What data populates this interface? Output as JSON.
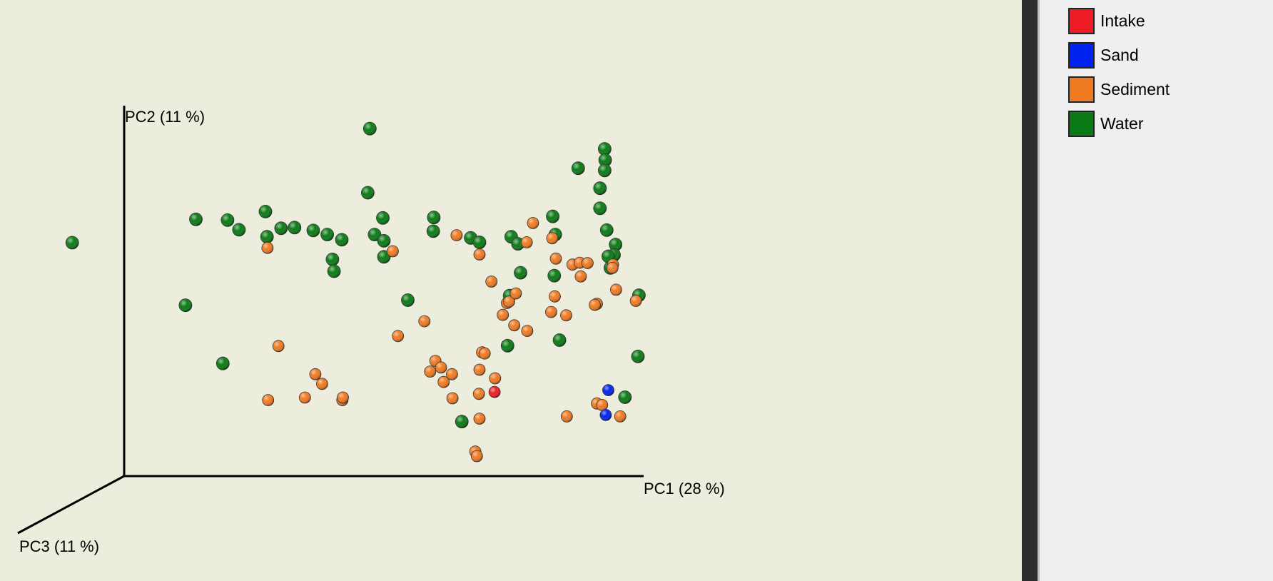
{
  "chart_data": {
    "type": "scatter",
    "title": "",
    "axes": {
      "x": {
        "label": "PC1 (28 %)"
      },
      "y": {
        "label": "PC2 (11 %)"
      },
      "z": {
        "label": "PC3 (11 %)"
      }
    },
    "legend_position": "top-right panel",
    "series": [
      {
        "name": "Intake",
        "color": "#ee1c24",
        "points": [
          [
            0.713,
            0.227
          ]
        ]
      },
      {
        "name": "Sand",
        "color": "#0022ee",
        "points": [
          [
            0.932,
            0.232
          ],
          [
            0.927,
            0.165
          ]
        ]
      },
      {
        "name": "Sediment",
        "color": "#f07a22",
        "points": [
          [
            0.276,
            0.616
          ],
          [
            0.297,
            0.351
          ],
          [
            0.277,
            0.205
          ],
          [
            0.348,
            0.212
          ],
          [
            0.368,
            0.275
          ],
          [
            0.381,
            0.249
          ],
          [
            0.42,
            0.205
          ],
          [
            0.421,
            0.212
          ],
          [
            0.517,
            0.607
          ],
          [
            0.527,
            0.378
          ],
          [
            0.578,
            0.418
          ],
          [
            0.589,
            0.282
          ],
          [
            0.599,
            0.311
          ],
          [
            0.61,
            0.293
          ],
          [
            0.615,
            0.254
          ],
          [
            0.631,
            0.275
          ],
          [
            0.632,
            0.21
          ],
          [
            0.64,
            0.65
          ],
          [
            0.684,
            0.598
          ],
          [
            0.684,
            0.287
          ],
          [
            0.689,
            0.334
          ],
          [
            0.694,
            0.331
          ],
          [
            0.683,
            0.222
          ],
          [
            0.684,
            0.155
          ],
          [
            0.676,
            0.066
          ],
          [
            0.679,
            0.054
          ],
          [
            0.707,
            0.525
          ],
          [
            0.737,
            0.467
          ],
          [
            0.741,
            0.471
          ],
          [
            0.729,
            0.435
          ],
          [
            0.751,
            0.407
          ],
          [
            0.787,
            0.683
          ],
          [
            0.775,
            0.631
          ],
          [
            0.822,
            0.443
          ],
          [
            0.829,
            0.485
          ],
          [
            0.831,
            0.587
          ],
          [
            0.863,
            0.571
          ],
          [
            0.877,
            0.576
          ],
          [
            0.879,
            0.539
          ],
          [
            0.892,
            0.575
          ],
          [
            0.941,
            0.571
          ],
          [
            0.91,
            0.465
          ],
          [
            0.947,
            0.503
          ],
          [
            0.906,
            0.462
          ],
          [
            0.91,
            0.196
          ],
          [
            0.955,
            0.161
          ],
          [
            0.985,
            0.473
          ],
          [
            0.852,
            0.161
          ],
          [
            0.92,
            0.192
          ],
          [
            0.851,
            0.434
          ],
          [
            0.94,
            0.562
          ],
          [
            0.776,
            0.392
          ],
          [
            0.824,
            0.642
          ],
          [
            0.754,
            0.493
          ],
          [
            0.714,
            0.264
          ]
        ]
      },
      {
        "name": "Water",
        "color": "#0a7a14",
        "points": [
          [
            -0.1,
            0.63
          ],
          [
            0.138,
            0.693
          ],
          [
            0.199,
            0.691
          ],
          [
            0.221,
            0.665
          ],
          [
            0.272,
            0.714
          ],
          [
            0.275,
            0.646
          ],
          [
            0.302,
            0.669
          ],
          [
            0.328,
            0.671
          ],
          [
            0.364,
            0.663
          ],
          [
            0.391,
            0.652
          ],
          [
            0.419,
            0.638
          ],
          [
            0.401,
            0.585
          ],
          [
            0.404,
            0.553
          ],
          [
            0.482,
            0.652
          ],
          [
            0.469,
            0.765
          ],
          [
            0.498,
            0.697
          ],
          [
            0.5,
            0.635
          ],
          [
            0.5,
            0.592
          ],
          [
            0.473,
            0.938
          ],
          [
            0.546,
            0.475
          ],
          [
            0.596,
            0.698
          ],
          [
            0.595,
            0.661
          ],
          [
            0.667,
            0.643
          ],
          [
            0.684,
            0.631
          ],
          [
            0.745,
            0.646
          ],
          [
            0.758,
            0.627
          ],
          [
            0.763,
            0.549
          ],
          [
            0.742,
            0.487
          ],
          [
            0.738,
            0.352
          ],
          [
            0.825,
            0.701
          ],
          [
            0.83,
            0.652
          ],
          [
            0.828,
            0.541
          ],
          [
            0.838,
            0.367
          ],
          [
            0.874,
            0.831
          ],
          [
            0.925,
            0.883
          ],
          [
            0.926,
            0.853
          ],
          [
            0.925,
            0.825
          ],
          [
            0.916,
            0.777
          ],
          [
            0.916,
            0.723
          ],
          [
            0.929,
            0.664
          ],
          [
            0.946,
            0.625
          ],
          [
            0.936,
            0.562
          ],
          [
            0.943,
            0.597
          ],
          [
            0.991,
            0.488
          ],
          [
            0.989,
            0.323
          ],
          [
            0.964,
            0.213
          ],
          [
            0.65,
            0.147
          ],
          [
            0.118,
            0.461
          ],
          [
            0.19,
            0.304
          ],
          [
            0.932,
            0.593
          ]
        ]
      }
    ]
  }
}
